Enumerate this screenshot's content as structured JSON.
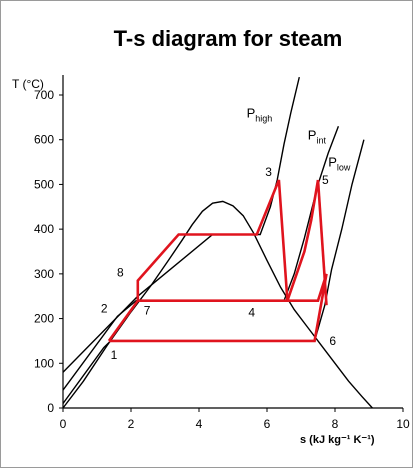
{
  "chart_data": {
    "type": "line",
    "title": "T-s diagram for steam",
    "xlabel": "s (kJ kg⁻¹ K⁻¹)",
    "ylabel": "T (°C)",
    "xlim": [
      0,
      10
    ],
    "ylim": [
      0,
      700
    ],
    "xticks": [
      0,
      2,
      4,
      6,
      8,
      10
    ],
    "yticks": [
      0,
      100,
      200,
      300,
      400,
      500,
      600,
      700
    ],
    "grid": false,
    "saturation_dome": {
      "x": [
        0.0,
        0.6,
        1.3,
        2.0,
        2.6,
        3.1,
        3.5,
        3.8,
        4.1,
        4.4,
        4.7,
        5.0,
        5.3,
        5.6,
        6.0,
        6.4,
        6.8,
        7.2,
        7.6,
        8.0,
        8.4,
        8.8,
        9.1
      ],
      "y": [
        0,
        60,
        140,
        215,
        275,
        330,
        375,
        410,
        440,
        458,
        462,
        452,
        430,
        392,
        330,
        270,
        220,
        180,
        140,
        100,
        60,
        25,
        0
      ]
    },
    "series": [
      {
        "name": "P_high",
        "x": [
          0.0,
          2.2,
          4.4,
          5.8,
          6.1,
          6.3,
          6.5,
          6.7,
          6.95
        ],
        "y": [
          80,
          250,
          388,
          388,
          450,
          510,
          590,
          660,
          740
        ]
      },
      {
        "name": "P_int",
        "x": [
          0.0,
          1.6,
          2.15,
          6.5,
          6.8,
          7.1,
          7.3,
          7.5,
          7.8,
          8.1
        ],
        "y": [
          40,
          205,
          240,
          240,
          300,
          380,
          440,
          500,
          570,
          630
        ]
      },
      {
        "name": "P_low",
        "x": [
          0.0,
          1.2,
          1.4,
          7.4,
          7.7,
          7.9,
          8.2,
          8.5,
          8.85
        ],
        "y": [
          10,
          135,
          150,
          150,
          230,
          310,
          400,
          500,
          600
        ]
      }
    ],
    "cycle": {
      "x": [
        1.35,
        2.2,
        2.2,
        3.4,
        5.7,
        6.35,
        6.6,
        7.5,
        7.75,
        7.4,
        1.35
      ],
      "y": [
        150,
        240,
        285,
        388,
        388,
        510,
        240,
        240,
        300,
        150,
        150
      ],
      "extra_segments": [
        {
          "x": [
            2.2,
            6.6
          ],
          "y": [
            240,
            240
          ]
        },
        {
          "x": [
            6.6,
            7.1,
            7.3,
            7.5
          ],
          "y": [
            240,
            350,
            420,
            510
          ]
        },
        {
          "x": [
            7.5,
            7.75
          ],
          "y": [
            510,
            230
          ]
        }
      ]
    },
    "point_labels": [
      {
        "text": "1",
        "x": 1.4,
        "y": 150
      },
      {
        "text": "2",
        "x": 1.35,
        "y": 205
      },
      {
        "text": "7",
        "x": 2.2,
        "y": 240
      },
      {
        "text": "8",
        "x": 2.0,
        "y": 285
      },
      {
        "text": "3",
        "x": 6.3,
        "y": 510
      },
      {
        "text": "4",
        "x": 6.1,
        "y": 240
      },
      {
        "text": "5",
        "x": 7.5,
        "y": 510
      },
      {
        "text": "6",
        "x": 7.6,
        "y": 150
      }
    ],
    "pressure_labels": [
      {
        "main": "P",
        "sub": "high",
        "x": 5.4,
        "y": 650
      },
      {
        "main": "P",
        "sub": "int",
        "x": 7.2,
        "y": 600
      },
      {
        "main": "P",
        "sub": "low",
        "x": 7.8,
        "y": 540
      }
    ]
  }
}
